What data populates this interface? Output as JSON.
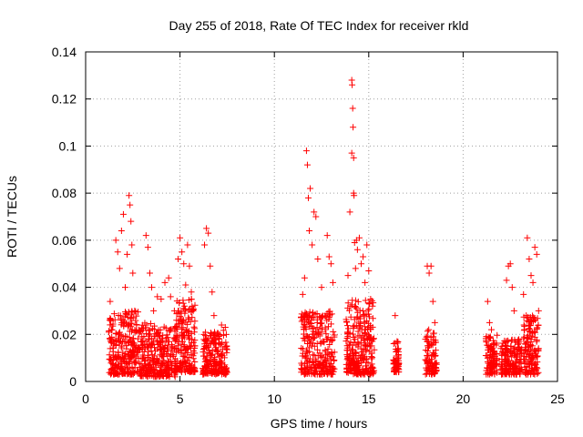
{
  "chart_data": {
    "type": "scatter",
    "title": "Day 255 of 2018, Rate Of TEC Index for receiver rkld",
    "xlabel": "GPS time / hours",
    "ylabel": "ROTI / TECUs",
    "xlim": [
      0,
      25
    ],
    "ylim": [
      0,
      0.14
    ],
    "x_ticks": [
      0,
      5,
      10,
      15,
      20,
      25
    ],
    "x_tick_labels": [
      "0",
      "5",
      "10",
      "15",
      "20",
      "25"
    ],
    "y_ticks": [
      0,
      0.02,
      0.04,
      0.06,
      0.08,
      0.1,
      0.12,
      0.14
    ],
    "y_tick_labels": [
      "0",
      "0.02",
      "0.04",
      "0.06",
      "0.08",
      "0.1",
      "0.12",
      "0.14"
    ],
    "grid": true,
    "marker": "+",
    "marker_color": "#ff0000",
    "series": [
      {
        "name": "ROTI",
        "points": [
          [
            1.3,
            0.034
          ],
          [
            1.4,
            0.022
          ],
          [
            1.5,
            0.016
          ],
          [
            1.6,
            0.06
          ],
          [
            1.7,
            0.055
          ],
          [
            1.8,
            0.048
          ],
          [
            1.9,
            0.064
          ],
          [
            2.0,
            0.071
          ],
          [
            2.1,
            0.04
          ],
          [
            2.2,
            0.054
          ],
          [
            2.3,
            0.079
          ],
          [
            2.35,
            0.075
          ],
          [
            2.4,
            0.068
          ],
          [
            2.45,
            0.058
          ],
          [
            2.5,
            0.046
          ],
          [
            2.6,
            0.03
          ],
          [
            2.7,
            0.024
          ],
          [
            3.2,
            0.062
          ],
          [
            3.3,
            0.057
          ],
          [
            3.4,
            0.046
          ],
          [
            3.5,
            0.04
          ],
          [
            3.6,
            0.03
          ],
          [
            3.8,
            0.036
          ],
          [
            4.0,
            0.035
          ],
          [
            4.2,
            0.042
          ],
          [
            4.4,
            0.044
          ],
          [
            4.5,
            0.036
          ],
          [
            4.7,
            0.03
          ],
          [
            4.9,
            0.052
          ],
          [
            5.0,
            0.061
          ],
          [
            5.1,
            0.055
          ],
          [
            5.2,
            0.05
          ],
          [
            5.3,
            0.041
          ],
          [
            5.4,
            0.058
          ],
          [
            5.5,
            0.049
          ],
          [
            5.6,
            0.038
          ],
          [
            5.7,
            0.03
          ],
          [
            6.3,
            0.058
          ],
          [
            6.4,
            0.065
          ],
          [
            6.5,
            0.063
          ],
          [
            6.6,
            0.049
          ],
          [
            6.7,
            0.038
          ],
          [
            6.8,
            0.028
          ],
          [
            7.2,
            0.024
          ],
          [
            7.4,
            0.023
          ],
          [
            11.5,
            0.037
          ],
          [
            11.6,
            0.044
          ],
          [
            11.7,
            0.098
          ],
          [
            11.75,
            0.092
          ],
          [
            11.8,
            0.078
          ],
          [
            11.85,
            0.064
          ],
          [
            11.9,
            0.082
          ],
          [
            12.0,
            0.058
          ],
          [
            12.1,
            0.072
          ],
          [
            12.2,
            0.07
          ],
          [
            12.3,
            0.052
          ],
          [
            12.5,
            0.04
          ],
          [
            12.8,
            0.062
          ],
          [
            12.9,
            0.053
          ],
          [
            13.0,
            0.05
          ],
          [
            13.1,
            0.042
          ],
          [
            13.9,
            0.045
          ],
          [
            14.0,
            0.072
          ],
          [
            14.1,
            0.097
          ],
          [
            14.2,
            0.095
          ],
          [
            14.25,
            0.059
          ],
          [
            14.3,
            0.048
          ],
          [
            14.35,
            0.06
          ],
          [
            14.4,
            0.056
          ],
          [
            14.5,
            0.061
          ],
          [
            14.6,
            0.05
          ],
          [
            14.7,
            0.053
          ],
          [
            14.8,
            0.042
          ],
          [
            14.9,
            0.058
          ],
          [
            15.0,
            0.047
          ],
          [
            15.1,
            0.035
          ],
          [
            15.2,
            0.032
          ],
          [
            14.1,
            0.128
          ],
          [
            14.12,
            0.126
          ],
          [
            14.15,
            0.116
          ],
          [
            14.17,
            0.108
          ],
          [
            14.2,
            0.08
          ],
          [
            14.22,
            0.079
          ],
          [
            16.4,
            0.028
          ],
          [
            16.5,
            0.017
          ],
          [
            18.1,
            0.049
          ],
          [
            18.2,
            0.046
          ],
          [
            18.3,
            0.049
          ],
          [
            18.4,
            0.034
          ],
          [
            18.5,
            0.025
          ],
          [
            21.3,
            0.034
          ],
          [
            21.4,
            0.025
          ],
          [
            21.5,
            0.022
          ],
          [
            22.3,
            0.043
          ],
          [
            22.4,
            0.049
          ],
          [
            22.5,
            0.05
          ],
          [
            22.6,
            0.04
          ],
          [
            22.7,
            0.03
          ],
          [
            23.2,
            0.037
          ],
          [
            23.4,
            0.061
          ],
          [
            23.5,
            0.052
          ],
          [
            23.6,
            0.045
          ],
          [
            23.7,
            0.042
          ],
          [
            23.8,
            0.057
          ],
          [
            23.9,
            0.054
          ],
          [
            24.0,
            0.03
          ]
        ]
      }
    ],
    "dense_bands": [
      {
        "x_range": [
          1.2,
          2.8
        ],
        "y_range": [
          0.003,
          0.03
        ],
        "count": 260
      },
      {
        "x_range": [
          2.8,
          4.8
        ],
        "y_range": [
          0.002,
          0.025
        ],
        "count": 300
      },
      {
        "x_range": [
          4.8,
          5.8
        ],
        "y_range": [
          0.004,
          0.035
        ],
        "count": 180
      },
      {
        "x_range": [
          6.2,
          7.5
        ],
        "y_range": [
          0.003,
          0.022
        ],
        "count": 200
      },
      {
        "x_range": [
          11.4,
          13.2
        ],
        "y_range": [
          0.003,
          0.03
        ],
        "count": 260
      },
      {
        "x_range": [
          13.8,
          15.3
        ],
        "y_range": [
          0.003,
          0.035
        ],
        "count": 280
      },
      {
        "x_range": [
          16.3,
          16.6
        ],
        "y_range": [
          0.004,
          0.017
        ],
        "count": 60
      },
      {
        "x_range": [
          18.0,
          18.6
        ],
        "y_range": [
          0.003,
          0.022
        ],
        "count": 90
      },
      {
        "x_range": [
          21.2,
          21.8
        ],
        "y_range": [
          0.003,
          0.02
        ],
        "count": 100
      },
      {
        "x_range": [
          22.0,
          23.1
        ],
        "y_range": [
          0.003,
          0.018
        ],
        "count": 170
      },
      {
        "x_range": [
          23.2,
          24.0
        ],
        "y_range": [
          0.003,
          0.028
        ],
        "count": 140
      }
    ]
  }
}
